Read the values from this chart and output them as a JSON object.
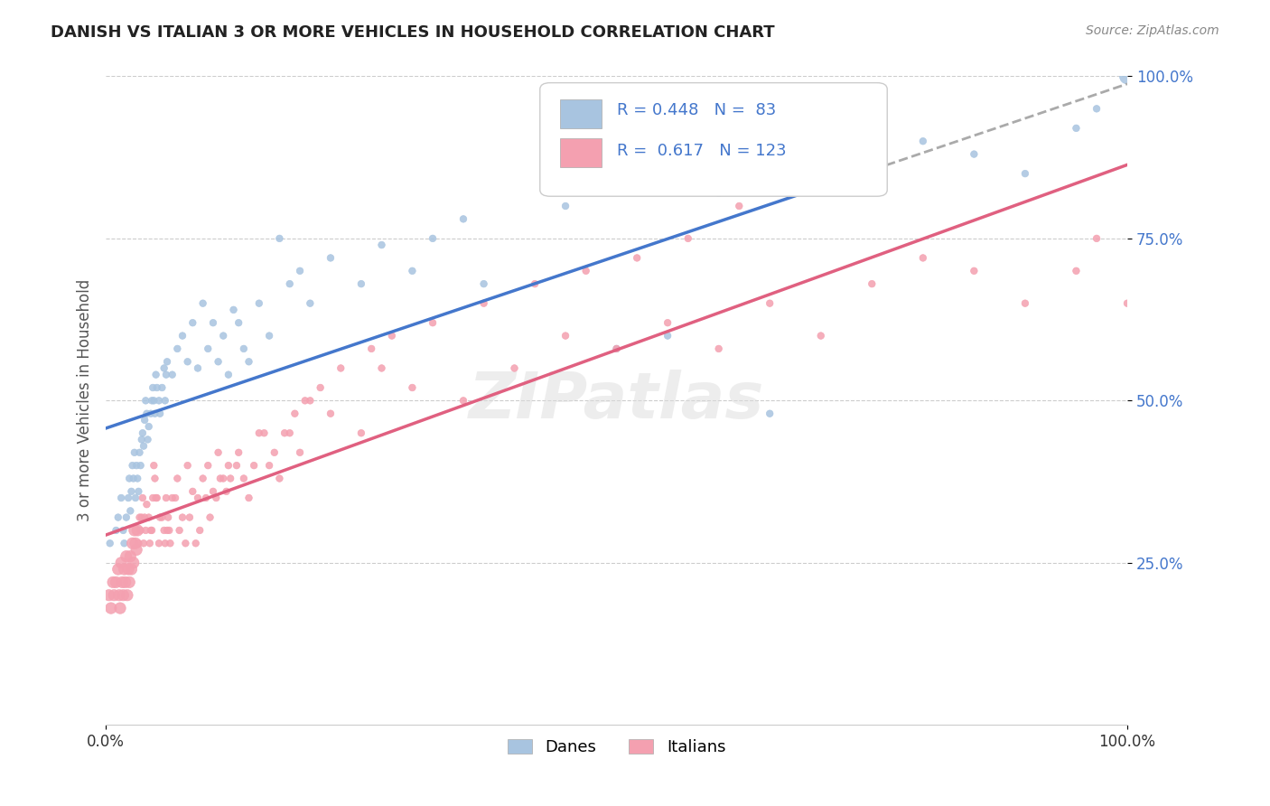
{
  "title": "DANISH VS ITALIAN 3 OR MORE VEHICLES IN HOUSEHOLD CORRELATION CHART",
  "source": "Source: ZipAtlas.com",
  "ylabel": "3 or more Vehicles in Household",
  "xlabel_ticks": [
    "0.0%",
    "100.0%"
  ],
  "ylabel_ticks": [
    "25.0%",
    "50.0%",
    "75.0%",
    "100.0%"
  ],
  "legend_danes": "Danes",
  "legend_italians": "Italians",
  "danes_R": 0.448,
  "danes_N": 83,
  "italians_R": 0.617,
  "italians_N": 123,
  "danes_color": "#a8c4e0",
  "italians_color": "#f4a0b0",
  "trendline_danes_color": "#4477cc",
  "trendline_italians_color": "#e06080",
  "trendline_danes_dashed_color": "#aaaaaa",
  "danes_x": [
    0.4,
    1.0,
    1.2,
    1.5,
    1.7,
    1.8,
    2.0,
    2.2,
    2.3,
    2.4,
    2.5,
    2.6,
    2.7,
    2.8,
    2.9,
    3.0,
    3.1,
    3.2,
    3.3,
    3.4,
    3.5,
    3.6,
    3.7,
    3.8,
    3.9,
    4.0,
    4.1,
    4.2,
    4.4,
    4.5,
    4.6,
    4.7,
    4.8,
    4.9,
    5.0,
    5.2,
    5.3,
    5.5,
    5.7,
    5.8,
    5.9,
    6.0,
    6.5,
    7.0,
    7.5,
    8.0,
    8.5,
    9.0,
    9.5,
    10.0,
    10.5,
    11.0,
    11.5,
    12.0,
    12.5,
    13.0,
    13.5,
    14.0,
    15.0,
    16.0,
    17.0,
    18.0,
    19.0,
    20.0,
    22.0,
    25.0,
    27.0,
    30.0,
    32.0,
    35.0,
    45.0,
    60.0,
    75.0,
    80.0,
    85.0,
    90.0,
    95.0,
    97.0,
    100.0,
    37.0,
    50.0,
    55.0,
    65.0
  ],
  "danes_y": [
    28,
    30,
    32,
    35,
    30,
    28,
    32,
    35,
    38,
    33,
    36,
    40,
    38,
    42,
    35,
    40,
    38,
    36,
    42,
    40,
    44,
    45,
    43,
    47,
    50,
    48,
    44,
    46,
    48,
    50,
    52,
    50,
    48,
    54,
    52,
    50,
    48,
    52,
    55,
    50,
    54,
    56,
    54,
    58,
    60,
    56,
    62,
    55,
    65,
    58,
    62,
    56,
    60,
    54,
    64,
    62,
    58,
    56,
    65,
    60,
    75,
    68,
    70,
    65,
    72,
    68,
    74,
    70,
    75,
    78,
    80,
    82,
    85,
    90,
    88,
    85,
    92,
    95,
    100,
    68,
    58,
    60,
    48
  ],
  "italians_x": [
    0.3,
    0.5,
    0.7,
    0.8,
    1.0,
    1.2,
    1.3,
    1.4,
    1.5,
    1.6,
    1.7,
    1.8,
    1.9,
    2.0,
    2.1,
    2.2,
    2.3,
    2.4,
    2.5,
    2.6,
    2.7,
    2.8,
    2.9,
    3.0,
    3.1,
    3.2,
    3.3,
    3.4,
    3.5,
    3.6,
    3.7,
    3.8,
    3.9,
    4.0,
    4.5,
    5.0,
    5.5,
    6.0,
    6.5,
    7.0,
    7.5,
    8.0,
    8.5,
    9.0,
    9.5,
    10.0,
    10.5,
    11.0,
    11.5,
    12.0,
    13.0,
    14.0,
    15.0,
    16.0,
    17.0,
    18.0,
    19.0,
    20.0,
    22.0,
    25.0,
    27.0,
    30.0,
    35.0,
    40.0,
    45.0,
    50.0,
    55.0,
    60.0,
    65.0,
    70.0,
    75.0,
    80.0,
    85.0,
    90.0,
    95.0,
    97.0,
    100.0,
    4.2,
    4.3,
    4.4,
    4.6,
    4.7,
    4.8,
    4.9,
    5.2,
    5.3,
    5.7,
    5.8,
    5.9,
    6.1,
    6.2,
    6.3,
    6.8,
    7.2,
    7.8,
    8.2,
    8.8,
    9.2,
    9.8,
    10.2,
    10.8,
    11.2,
    11.8,
    12.2,
    12.8,
    13.5,
    14.5,
    15.5,
    16.5,
    17.5,
    18.5,
    19.5,
    21.0,
    23.0,
    26.0,
    28.0,
    32.0,
    37.0,
    42.0,
    47.0,
    52.0,
    57.0,
    62.0
  ],
  "italians_y": [
    20,
    18,
    22,
    20,
    22,
    24,
    20,
    18,
    25,
    22,
    20,
    24,
    22,
    26,
    20,
    24,
    22,
    26,
    24,
    28,
    25,
    30,
    28,
    27,
    30,
    28,
    32,
    30,
    32,
    35,
    28,
    32,
    30,
    34,
    30,
    35,
    32,
    30,
    35,
    38,
    32,
    40,
    36,
    35,
    38,
    40,
    36,
    42,
    38,
    40,
    42,
    35,
    45,
    40,
    38,
    45,
    42,
    50,
    48,
    45,
    55,
    52,
    50,
    55,
    60,
    58,
    62,
    58,
    65,
    60,
    68,
    72,
    70,
    65,
    70,
    75,
    65,
    32,
    28,
    30,
    35,
    40,
    38,
    35,
    28,
    32,
    30,
    28,
    35,
    32,
    30,
    28,
    35,
    30,
    28,
    32,
    28,
    30,
    35,
    32,
    35,
    38,
    36,
    38,
    40,
    38,
    40,
    45,
    42,
    45,
    48,
    50,
    52,
    55,
    58,
    60,
    62,
    65,
    68,
    70,
    72,
    75,
    80
  ],
  "danes_sizes": [
    30,
    30,
    30,
    30,
    30,
    30,
    30,
    30,
    30,
    30,
    30,
    30,
    30,
    30,
    30,
    30,
    30,
    30,
    30,
    30,
    30,
    30,
    30,
    30,
    30,
    30,
    30,
    30,
    30,
    30,
    30,
    30,
    30,
    30,
    30,
    30,
    30,
    30,
    30,
    30,
    30,
    30,
    30,
    30,
    30,
    30,
    30,
    30,
    30,
    30,
    30,
    30,
    30,
    30,
    30,
    30,
    30,
    30,
    30,
    30,
    30,
    30,
    30,
    30,
    30,
    30,
    30,
    30,
    30,
    30,
    30,
    30,
    30,
    30,
    30,
    30,
    30,
    30,
    150,
    30,
    30,
    30,
    30
  ],
  "italians_sizes": [
    80,
    80,
    80,
    80,
    80,
    80,
    80,
    80,
    80,
    80,
    80,
    80,
    80,
    80,
    80,
    80,
    80,
    80,
    80,
    80,
    80,
    80,
    80,
    80,
    80,
    30,
    30,
    30,
    30,
    30,
    30,
    30,
    30,
    30,
    30,
    30,
    30,
    30,
    30,
    30,
    30,
    30,
    30,
    30,
    30,
    30,
    30,
    30,
    30,
    30,
    30,
    30,
    30,
    30,
    30,
    30,
    30,
    30,
    30,
    30,
    30,
    30,
    30,
    30,
    30,
    30,
    30,
    30,
    30,
    30,
    30,
    30,
    30,
    30,
    30,
    30,
    30,
    30,
    30,
    30,
    30,
    30,
    30,
    30,
    30,
    30,
    30,
    30,
    30,
    30,
    30,
    30,
    30,
    30,
    30,
    30,
    30,
    30,
    30,
    30,
    30,
    30,
    30,
    30,
    30,
    30,
    30,
    30,
    30,
    30,
    30,
    30,
    30,
    30,
    30,
    30,
    30,
    30,
    30,
    30,
    30,
    30,
    30
  ]
}
